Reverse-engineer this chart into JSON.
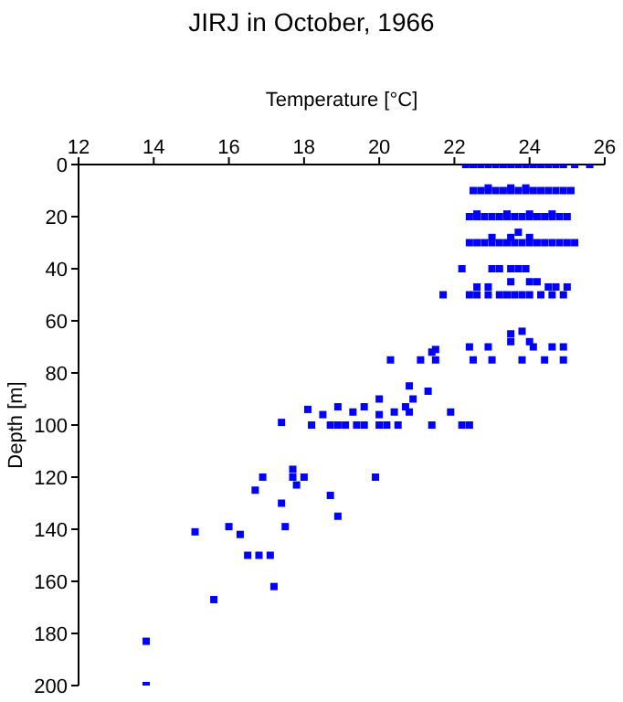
{
  "chart_data": {
    "type": "scatter",
    "title": "JIRJ in October, 1966",
    "xlabel": "Temperature [°C]",
    "ylabel": "Depth [m]",
    "x": [
      22.3,
      22.5,
      22.7,
      22.9,
      23.1,
      23.3,
      23.5,
      23.7,
      23.9,
      24.1,
      24.3,
      24.5,
      24.7,
      24.9,
      25.2,
      25.6,
      22.5,
      22.7,
      22.9,
      23.1,
      23.3,
      23.5,
      23.7,
      23.9,
      24.1,
      24.3,
      24.5,
      24.7,
      24.9,
      25.1,
      22.9,
      23.5,
      23.9,
      22.4,
      22.6,
      22.8,
      23.0,
      23.2,
      23.4,
      23.6,
      23.8,
      24.0,
      24.2,
      24.4,
      24.6,
      24.8,
      25.0,
      22.6,
      23.4,
      24.0,
      24.6,
      22.4,
      22.6,
      22.8,
      23.0,
      23.2,
      23.4,
      23.6,
      23.8,
      24.0,
      24.2,
      24.4,
      24.6,
      24.8,
      25.0,
      25.2,
      23.0,
      23.5,
      24.0,
      23.7,
      22.2,
      23.0,
      23.2,
      23.5,
      23.7,
      23.9,
      23.5,
      24.0,
      24.2,
      22.6,
      22.9,
      24.5,
      24.7,
      25.0,
      21.7,
      22.4,
      22.6,
      22.9,
      23.2,
      23.4,
      23.6,
      23.8,
      24.0,
      24.3,
      24.6,
      24.9,
      23.8,
      23.5,
      23.5,
      24.0,
      22.4,
      22.9,
      24.1,
      24.6,
      24.9,
      22.5,
      23.0,
      23.8,
      24.4,
      24.9,
      21.4,
      21.5,
      20.3,
      21.1,
      21.5,
      20.8,
      21.3,
      20.0,
      20.9,
      18.1,
      18.5,
      18.9,
      19.6,
      20.7,
      19.3,
      20.4,
      20.8,
      21.9,
      20.0,
      17.4,
      18.2,
      18.7,
      18.9,
      19.1,
      19.4,
      19.6,
      20.0,
      20.2,
      20.5,
      21.4,
      22.2,
      22.4,
      16.9,
      17.7,
      18.0,
      19.9,
      17.7,
      17.8,
      16.7,
      18.7,
      17.4,
      18.9,
      16.0,
      17.5,
      15.1,
      16.3,
      16.5,
      16.8,
      17.1,
      17.2,
      15.6,
      13.8,
      13.8
    ],
    "values": [
      0,
      0,
      0,
      0,
      0,
      0,
      0,
      0,
      0,
      0,
      0,
      0,
      0,
      0,
      0,
      0,
      10,
      10,
      10,
      10,
      10,
      10,
      10,
      10,
      10,
      10,
      10,
      10,
      10,
      10,
      9,
      9,
      9,
      20,
      20,
      20,
      20,
      20,
      20,
      20,
      20,
      20,
      20,
      20,
      20,
      20,
      20,
      19,
      19,
      19,
      19,
      30,
      30,
      30,
      30,
      30,
      30,
      30,
      30,
      30,
      30,
      30,
      30,
      30,
      30,
      30,
      28,
      28,
      28,
      26,
      40,
      40,
      40,
      40,
      40,
      40,
      45,
      45,
      45,
      47,
      47,
      47,
      47,
      47,
      50,
      50,
      50,
      50,
      50,
      50,
      50,
      50,
      50,
      50,
      50,
      50,
      64,
      65,
      68,
      68,
      70,
      70,
      70,
      70,
      70,
      75,
      75,
      75,
      75,
      75,
      72,
      71,
      75,
      75,
      75,
      85,
      87,
      90,
      90,
      94,
      96,
      93,
      93,
      93,
      95,
      95,
      95,
      95,
      96,
      99,
      100,
      100,
      100,
      100,
      100,
      100,
      100,
      100,
      100,
      100,
      100,
      100,
      120,
      120,
      120,
      120,
      117,
      123,
      125,
      127,
      130,
      135,
      139,
      139,
      141,
      142,
      150,
      150,
      150,
      162,
      167,
      183,
      200
    ],
    "color": "#0000ff",
    "marker": "square",
    "xlim": [
      12,
      26
    ],
    "xticks": [
      12,
      14,
      16,
      18,
      20,
      22,
      24,
      26
    ],
    "ylim": [
      200,
      0
    ],
    "yticks": [
      0,
      20,
      40,
      60,
      80,
      100,
      120,
      140,
      160,
      180,
      200
    ],
    "grid": false,
    "legend": false
  }
}
